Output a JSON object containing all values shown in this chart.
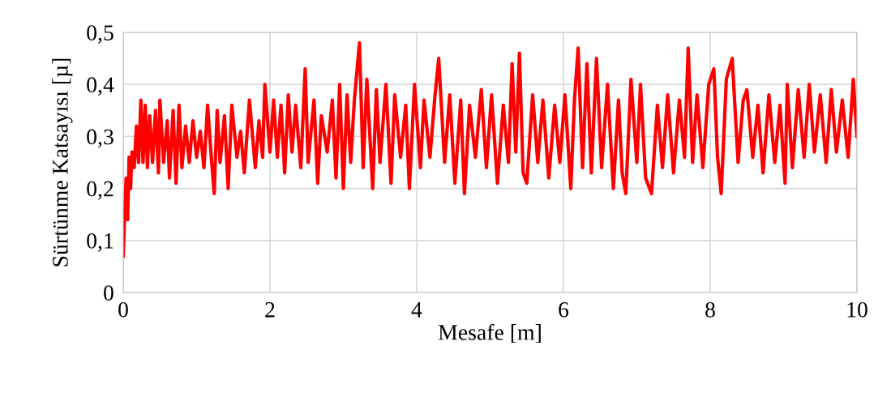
{
  "chart_data": {
    "type": "line",
    "xlabel": "Mesafe [m]",
    "ylabel": "Sürtünme Katsayısı [µ]",
    "xlim": [
      0,
      10
    ],
    "xticks": [
      0,
      2,
      4,
      6,
      8,
      10
    ],
    "ylim": [
      0,
      0.5
    ],
    "yticks": [
      {
        "value": 0,
        "label": "0"
      },
      {
        "value": 0.1,
        "label": "0,1"
      },
      {
        "value": 0.2,
        "label": "0,2"
      },
      {
        "value": 0.3,
        "label": "0,3"
      },
      {
        "value": 0.4,
        "label": "0,4"
      },
      {
        "value": 0.5,
        "label": "0,5"
      }
    ],
    "grid": true,
    "legend": false,
    "marker": "none",
    "line_style": "solid",
    "series": [
      {
        "color": "#ff0000",
        "x": [
          0,
          0.02,
          0.04,
          0.06,
          0.08,
          0.1,
          0.12,
          0.15,
          0.18,
          0.21,
          0.24,
          0.27,
          0.3,
          0.33,
          0.36,
          0.4,
          0.44,
          0.48,
          0.5,
          0.55,
          0.6,
          0.63,
          0.68,
          0.72,
          0.76,
          0.8,
          0.85,
          0.9,
          0.95,
          1.0,
          1.05,
          1.1,
          1.15,
          1.2,
          1.24,
          1.28,
          1.32,
          1.38,
          1.43,
          1.48,
          1.55,
          1.6,
          1.65,
          1.72,
          1.8,
          1.85,
          1.9,
          1.93,
          2.0,
          2.05,
          2.1,
          2.15,
          2.2,
          2.25,
          2.3,
          2.35,
          2.42,
          2.48,
          2.52,
          2.6,
          2.65,
          2.7,
          2.78,
          2.85,
          2.9,
          2.95,
          3.0,
          3.05,
          3.1,
          3.15,
          3.22,
          3.27,
          3.32,
          3.4,
          3.45,
          3.5,
          3.58,
          3.65,
          3.7,
          3.78,
          3.85,
          3.9,
          3.97,
          4.05,
          4.1,
          4.18,
          4.25,
          4.3,
          4.38,
          4.45,
          4.52,
          4.6,
          4.65,
          4.72,
          4.8,
          4.88,
          4.95,
          5.02,
          5.1,
          5.18,
          5.25,
          5.3,
          5.35,
          5.4,
          5.45,
          5.5,
          5.58,
          5.65,
          5.72,
          5.8,
          5.88,
          5.95,
          6.02,
          6.1,
          6.15,
          6.2,
          6.26,
          6.32,
          6.38,
          6.45,
          6.52,
          6.6,
          6.68,
          6.75,
          6.8,
          6.85,
          6.92,
          7.0,
          7.05,
          7.12,
          7.2,
          7.28,
          7.35,
          7.42,
          7.5,
          7.58,
          7.65,
          7.7,
          7.76,
          7.82,
          7.9,
          7.98,
          8.05,
          8.1,
          8.15,
          8.22,
          8.3,
          8.38,
          8.45,
          8.5,
          8.58,
          8.65,
          8.72,
          8.8,
          8.88,
          8.95,
          9.02,
          9.05,
          9.12,
          9.2,
          9.28,
          9.35,
          9.42,
          9.5,
          9.58,
          9.65,
          9.72,
          9.8,
          9.88,
          9.95,
          10.0
        ],
        "values": [
          0.07,
          0.15,
          0.22,
          0.14,
          0.26,
          0.2,
          0.27,
          0.24,
          0.32,
          0.25,
          0.37,
          0.25,
          0.36,
          0.24,
          0.34,
          0.25,
          0.35,
          0.23,
          0.37,
          0.25,
          0.33,
          0.22,
          0.35,
          0.21,
          0.36,
          0.24,
          0.32,
          0.25,
          0.33,
          0.26,
          0.31,
          0.24,
          0.36,
          0.26,
          0.19,
          0.35,
          0.25,
          0.34,
          0.2,
          0.36,
          0.26,
          0.31,
          0.23,
          0.37,
          0.24,
          0.33,
          0.26,
          0.4,
          0.27,
          0.37,
          0.26,
          0.36,
          0.23,
          0.38,
          0.27,
          0.36,
          0.24,
          0.43,
          0.25,
          0.37,
          0.21,
          0.34,
          0.27,
          0.37,
          0.22,
          0.4,
          0.2,
          0.38,
          0.25,
          0.37,
          0.48,
          0.24,
          0.41,
          0.2,
          0.39,
          0.25,
          0.4,
          0.21,
          0.38,
          0.26,
          0.36,
          0.2,
          0.4,
          0.24,
          0.37,
          0.26,
          0.38,
          0.45,
          0.25,
          0.38,
          0.21,
          0.37,
          0.19,
          0.36,
          0.26,
          0.39,
          0.24,
          0.38,
          0.21,
          0.36,
          0.25,
          0.44,
          0.27,
          0.46,
          0.23,
          0.21,
          0.38,
          0.25,
          0.37,
          0.22,
          0.36,
          0.25,
          0.38,
          0.2,
          0.37,
          0.47,
          0.24,
          0.44,
          0.23,
          0.45,
          0.24,
          0.4,
          0.2,
          0.37,
          0.23,
          0.19,
          0.41,
          0.25,
          0.4,
          0.22,
          0.19,
          0.36,
          0.24,
          0.38,
          0.23,
          0.37,
          0.26,
          0.47,
          0.25,
          0.38,
          0.24,
          0.4,
          0.43,
          0.26,
          0.19,
          0.41,
          0.45,
          0.25,
          0.37,
          0.39,
          0.26,
          0.36,
          0.23,
          0.38,
          0.25,
          0.36,
          0.21,
          0.4,
          0.24,
          0.39,
          0.26,
          0.4,
          0.27,
          0.38,
          0.25,
          0.39,
          0.27,
          0.37,
          0.26,
          0.41,
          0.3
        ]
      }
    ]
  }
}
